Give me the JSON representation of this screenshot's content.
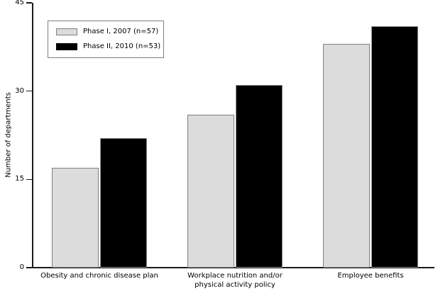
{
  "chart_data": {
    "type": "bar",
    "title": "",
    "xlabel": "",
    "ylabel": "Number of departments",
    "ylim": [
      0,
      45
    ],
    "yticks": [
      0,
      15,
      30,
      45
    ],
    "grid": false,
    "legend_position": "top-left-inside",
    "categories": [
      "Obesity and chronic disease plan",
      "Workplace nutrition and/or\nphysical activity policy",
      "Employee benefits"
    ],
    "series": [
      {
        "name": "Phase I, 2007 (n=57)",
        "values": [
          17,
          26,
          38
        ],
        "color": "#dcdcdc",
        "border_color": "#7f7f7f"
      },
      {
        "name": "Phase II, 2010 (n=53)",
        "values": [
          22,
          31,
          41
        ],
        "color": "#000000",
        "border_color": "#8c8c8c"
      }
    ]
  },
  "colors": {
    "axis": "#1a1a1a",
    "background": "#ffffff",
    "legend_border": "#7f7f7f"
  }
}
